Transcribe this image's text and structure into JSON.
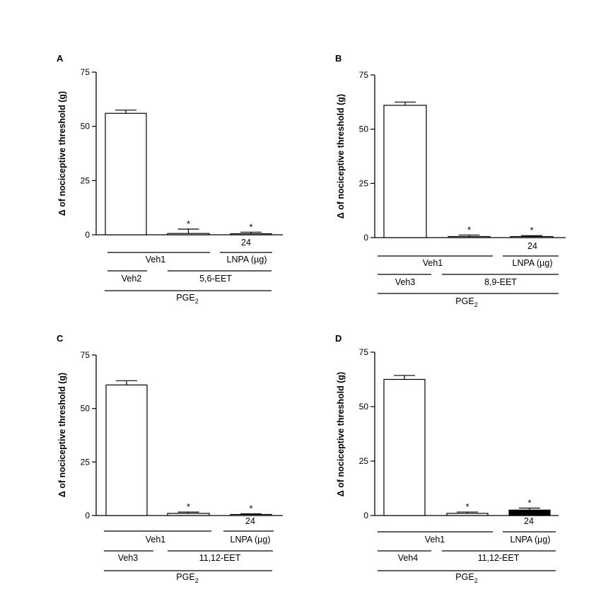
{
  "figure": {
    "ylabel": "Δ of nociceptive threshold (g)"
  },
  "chart_data": [
    {
      "panel_label": "A",
      "type": "bar",
      "categories": [
        "Veh2 + Veh1",
        "5,6-EET + Veh1",
        "5,6-EET + LNPA 24 µg"
      ],
      "values": [
        56,
        0.6,
        0.4
      ],
      "errors": [
        1.5,
        2.0,
        0.8
      ],
      "significance": [
        "",
        "*",
        "*"
      ],
      "bar_fill": [
        "#ffffff",
        "#ffffff",
        "#ffffff"
      ],
      "ylim": [
        0,
        75
      ],
      "yticks": [
        0,
        25,
        50,
        75
      ],
      "ylabel": "Δ of nociceptive threshold (g)",
      "treatment_rows": {
        "dose": "24",
        "row1_label": "Veh1",
        "row1_right": "LNPA (µg)",
        "row2_left": "Veh2",
        "row2_right": "5,6-EET",
        "row3_main": "PGE",
        "row3_sub": "2"
      }
    },
    {
      "panel_label": "B",
      "type": "bar",
      "categories": [
        "Veh3 + Veh1",
        "8,9-EET + Veh1",
        "8,9-EET + LNPA 24 µg"
      ],
      "values": [
        61,
        0.2,
        0.3
      ],
      "errors": [
        1.5,
        1.0,
        0.6
      ],
      "significance": [
        "",
        "*",
        "*"
      ],
      "bar_fill": [
        "#ffffff",
        "#ffffff",
        "#ffffff"
      ],
      "ylim": [
        0,
        75
      ],
      "yticks": [
        0,
        25,
        50,
        75
      ],
      "ylabel": "Δ of nociceptive threshold (g)",
      "treatment_rows": {
        "dose": "24",
        "row1_label": "Veh1",
        "row1_right": "LNPA (µg)",
        "row2_left": "Veh3",
        "row2_right": "8,9-EET",
        "row3_main": "PGE",
        "row3_sub": "2"
      }
    },
    {
      "panel_label": "C",
      "type": "bar",
      "categories": [
        "Veh3 + Veh1",
        "11,12-EET + Veh1",
        "11,12-EET + LNPA 24 µg"
      ],
      "values": [
        61,
        1.0,
        0.3
      ],
      "errors": [
        2.0,
        0.6,
        0.5
      ],
      "significance": [
        "",
        "*",
        "*"
      ],
      "bar_fill": [
        "#ffffff",
        "#ffffff",
        "#ffffff"
      ],
      "ylim": [
        0,
        75
      ],
      "yticks": [
        0,
        25,
        50,
        75
      ],
      "ylabel": "Δ of nociceptive threshold (g)",
      "treatment_rows": {
        "dose": "24",
        "row1_label": "Veh1",
        "row1_right": "LNPA (µg)",
        "row2_left": "Veh3",
        "row2_right": "11,12-EET",
        "row3_main": "PGE",
        "row3_sub": "2"
      }
    },
    {
      "panel_label": "D",
      "type": "bar",
      "categories": [
        "Veh4 + Veh1",
        "11,12-EET + Veh1",
        "11,12-EET + LNPA 24 µg"
      ],
      "values": [
        62.5,
        1.0,
        2.5
      ],
      "errors": [
        1.8,
        0.6,
        0.9
      ],
      "significance": [
        "",
        "*",
        "*"
      ],
      "bar_fill": [
        "#ffffff",
        "#ffffff",
        "#000000"
      ],
      "ylim": [
        0,
        75
      ],
      "yticks": [
        0,
        25,
        50,
        75
      ],
      "ylabel": "Δ of nociceptive threshold (g)",
      "treatment_rows": {
        "dose": "24",
        "row1_label": "Veh1",
        "row1_right": "LNPA (µg)",
        "row2_left": "Veh4",
        "row2_right": "11,12-EET",
        "row3_main": "PGE",
        "row3_sub": "2"
      }
    }
  ]
}
